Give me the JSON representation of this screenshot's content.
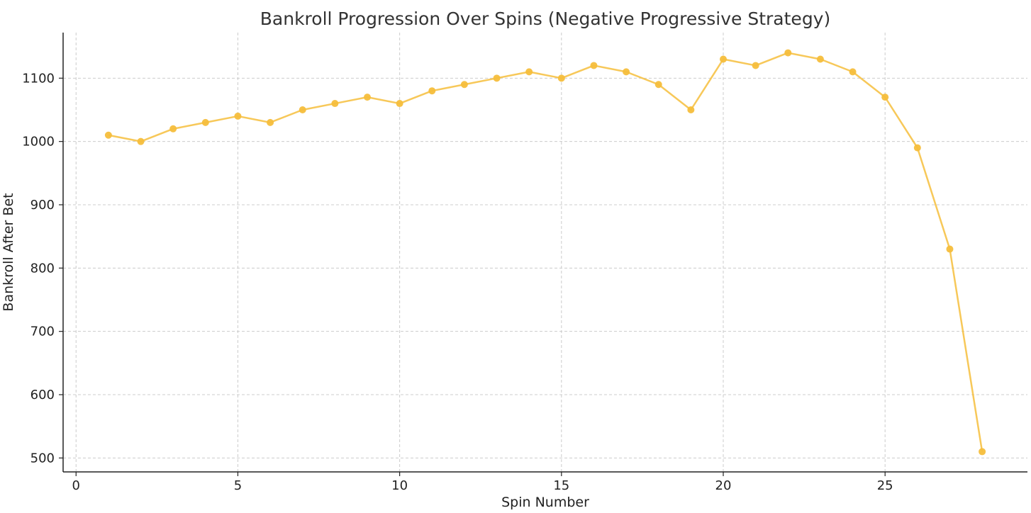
{
  "chart_data": {
    "type": "line",
    "title": "Bankroll Progression Over Spins (Negative Progressive Strategy)",
    "xlabel": "Spin Number",
    "ylabel": "Bankroll After Bet",
    "xlim": [
      -0.4,
      29.4
    ],
    "ylim": [
      478,
      1172
    ],
    "xticks": [
      0,
      5,
      10,
      15,
      20,
      25
    ],
    "yticks": [
      500,
      600,
      700,
      800,
      900,
      1000,
      1100
    ],
    "grid": true,
    "legend": "none",
    "series_color": "#F6BE3C",
    "series": [
      {
        "x": [
          1,
          2,
          3,
          4,
          5,
          6,
          7,
          8,
          9,
          10,
          11,
          12,
          13,
          14,
          15,
          16,
          17,
          18,
          19,
          20,
          21,
          22,
          23,
          24,
          25,
          26,
          27,
          28
        ],
        "y": [
          1010,
          1000,
          1020,
          1030,
          1040,
          1030,
          1050,
          1060,
          1070,
          1060,
          1080,
          1090,
          1100,
          1110,
          1100,
          1120,
          1110,
          1090,
          1050,
          1130,
          1120,
          1140,
          1130,
          1110,
          1070,
          990,
          830,
          510
        ]
      }
    ]
  }
}
